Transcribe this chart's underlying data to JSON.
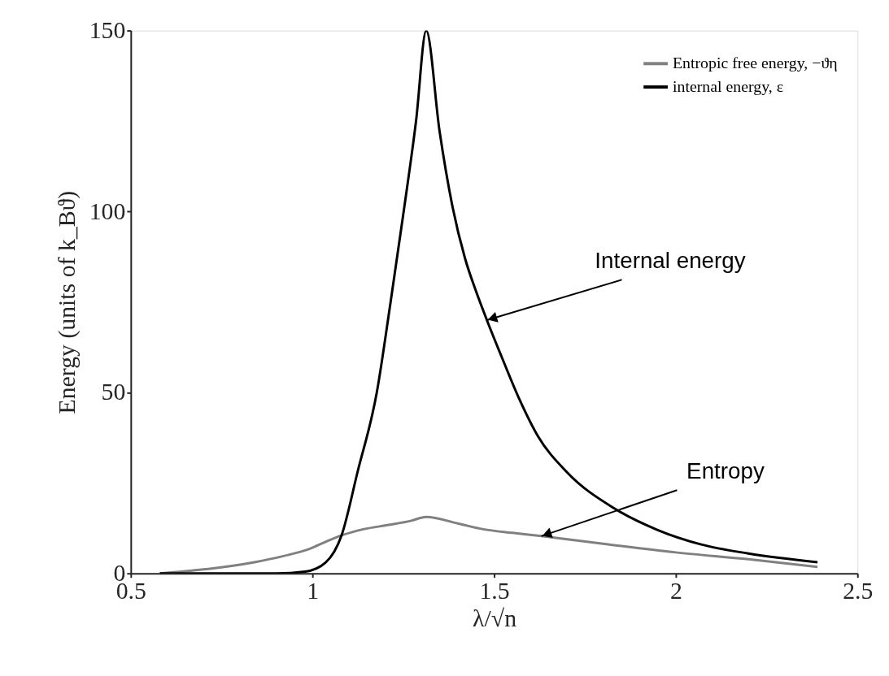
{
  "chart_data": {
    "type": "line",
    "xlabel": "λ/√n",
    "ylabel": "Energy (units of k_Bϑ)",
    "xlim": [
      0.5,
      2.5
    ],
    "xticks": [
      0.5,
      {
        "value": 1,
        "label": "1"
      },
      1.5,
      {
        "value": 2,
        "label": "2"
      },
      2.5
    ],
    "ylim": [
      0,
      150
    ],
    "yticks": [
      0,
      50,
      100,
      150
    ],
    "grid": false,
    "legend": "top right",
    "marker": "none",
    "line_style": "solid",
    "series": [
      {
        "name": "Entropic free energy, −ϑη",
        "color": "#808080",
        "x": [
          0.58,
          0.7,
          0.84,
          0.92,
          0.99,
          1.04,
          1.08,
          1.14,
          1.21,
          1.27,
          1.313,
          1.4,
          1.47,
          1.55,
          1.63,
          1.8,
          2.0,
          2.2,
          2.39
        ],
        "values": [
          0,
          1.1,
          3.1,
          4.8,
          6.7,
          8.9,
          10.5,
          12.2,
          13.4,
          14.5,
          15.6,
          13.8,
          12.2,
          11.2,
          10.3,
          8.2,
          5.8,
          3.9,
          1.8
        ]
      },
      {
        "name": "internal energy, ε",
        "color": "#000000",
        "x": [
          0.58,
          0.9,
          0.98,
          1.036,
          1.08,
          1.124,
          1.177,
          1.215,
          1.251,
          1.285,
          1.313,
          1.35,
          1.384,
          1.42,
          1.45,
          1.48,
          1.52,
          1.57,
          1.62,
          1.7,
          1.83,
          1.95,
          2.07,
          2.2,
          2.39
        ],
        "values": [
          0,
          0,
          0.5,
          3,
          10.5,
          28,
          50,
          75,
          100,
          125,
          150,
          122,
          102,
          87,
          78,
          70,
          60,
          48,
          38,
          28,
          18,
          12,
          8,
          5.5,
          3.1
        ]
      }
    ],
    "annotations": [
      {
        "text": "Internal energy",
        "x": 1.48,
        "y": 70
      },
      {
        "text": "Entropy",
        "x": 1.63,
        "y": 10.3
      }
    ]
  }
}
